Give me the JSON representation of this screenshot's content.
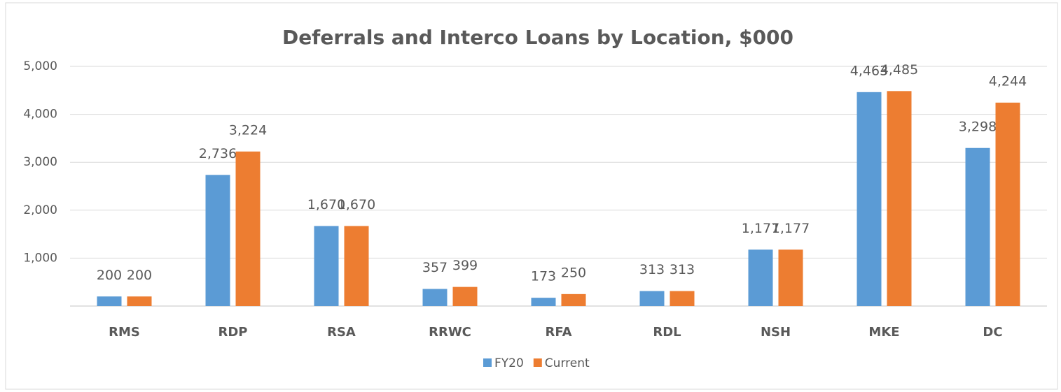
{
  "chart_data": {
    "type": "bar",
    "title": "Deferrals and Interco Loans by Location, $000",
    "categories": [
      "RMS",
      "RDP",
      "RSA",
      "RRWC",
      "RFA",
      "RDL",
      "NSH",
      "MKE",
      "DC"
    ],
    "series": [
      {
        "name": "FY20",
        "color": "#5b9bd5",
        "values": [
          200,
          2736,
          1670,
          357,
          173,
          313,
          1177,
          4463,
          3298
        ],
        "value_labels": [
          "200",
          "2,736",
          "1,670",
          "357",
          "173",
          "313",
          "1,177",
          "4,463",
          "3,298"
        ]
      },
      {
        "name": "Current",
        "color": "#ed7d31",
        "values": [
          200,
          3224,
          1670,
          399,
          250,
          313,
          1177,
          4485,
          4244
        ],
        "value_labels": [
          "200",
          "3,224",
          "1,670",
          "399",
          "250",
          "313",
          "1,177",
          "4,485",
          "4,244"
        ]
      }
    ],
    "ylim": [
      0,
      5000
    ],
    "yticks": [
      {
        "value": 1000,
        "label": "1,000"
      },
      {
        "value": 2000,
        "label": "2,000"
      },
      {
        "value": 3000,
        "label": "3,000"
      },
      {
        "value": 4000,
        "label": "4,000"
      },
      {
        "value": 5000,
        "label": "5,000"
      }
    ],
    "grid": true,
    "legend": "bottom"
  }
}
